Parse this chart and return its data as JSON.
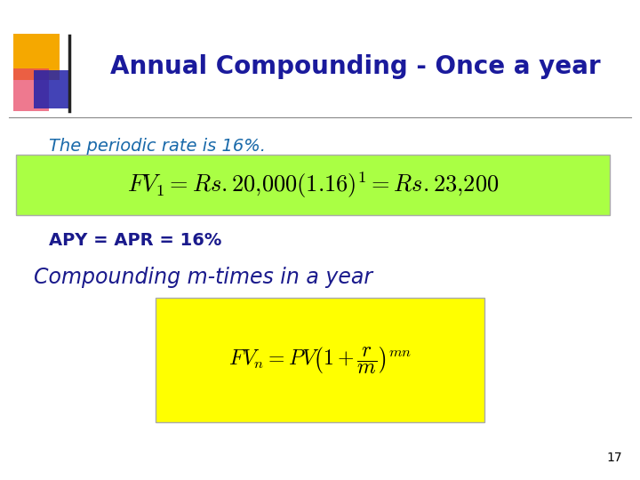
{
  "title": "Annual Compounding - Once a year",
  "title_color": "#1a1a9c",
  "title_fontsize": 20,
  "background_color": "#ffffff",
  "periodic_rate_text": "The periodic rate is 16%.",
  "periodic_rate_color": "#1a6aaa",
  "periodic_rate_fontsize": 14,
  "formula1_box_color": "#aaff44",
  "formula1_fontsize": 19,
  "apy_text": "APY = APR = 16%",
  "apy_color": "#1a1a8c",
  "apy_fontsize": 14,
  "compounding_text": "Compounding m-times in a year",
  "compounding_color": "#1a1a8c",
  "compounding_fontsize": 17,
  "formula2_box_color": "#ffff00",
  "formula2_fontsize": 17,
  "slide_number": "17",
  "slide_number_fontsize": 10,
  "slide_number_color": "#000000",
  "header_line_color": "#888888",
  "square_yellow": "#f5a800",
  "square_red": "#e84060",
  "square_blue": "#2222aa",
  "vline_color": "#222222"
}
